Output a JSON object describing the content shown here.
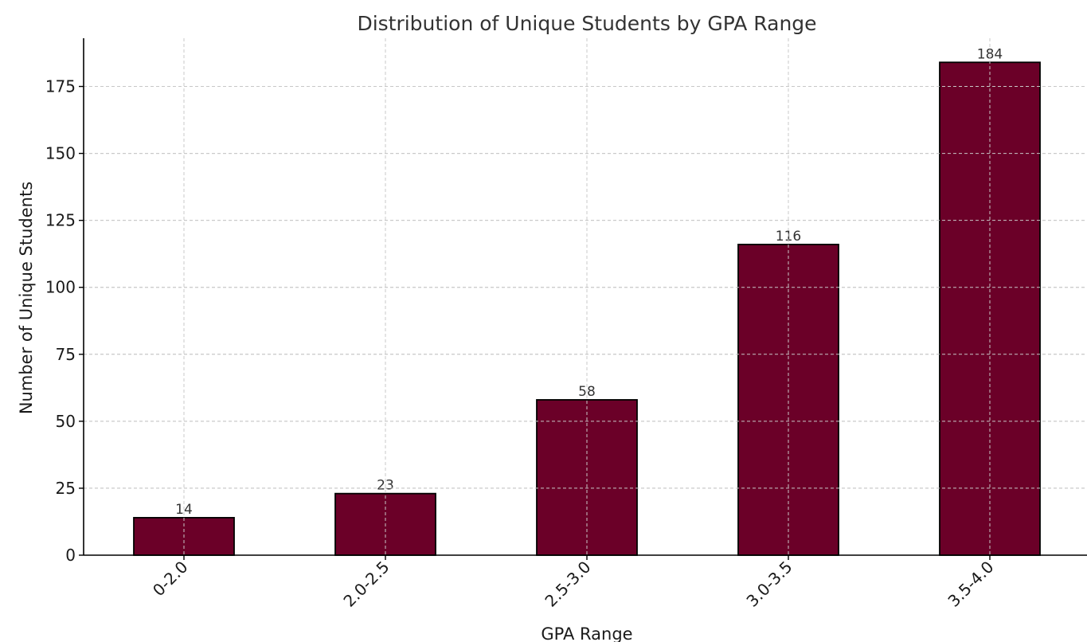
{
  "chart_data": {
    "type": "bar",
    "title": "Distribution of Unique Students by GPA Range",
    "xlabel": "GPA Range",
    "ylabel": "Number of Unique Students",
    "categories": [
      "0-2.0",
      "2.0-2.5",
      "2.5-3.0",
      "3.0-3.5",
      "3.5-4.0"
    ],
    "values": [
      14,
      23,
      58,
      116,
      184
    ],
    "value_labels": [
      "14",
      "23",
      "58",
      "116",
      "184"
    ],
    "yticks": [
      0,
      25,
      50,
      75,
      100,
      125,
      150,
      175
    ],
    "ylim": [
      0,
      193
    ],
    "grid": true,
    "bar_color": "#6b0028",
    "edge_color": "#000000",
    "xtick_rotation": -45
  }
}
